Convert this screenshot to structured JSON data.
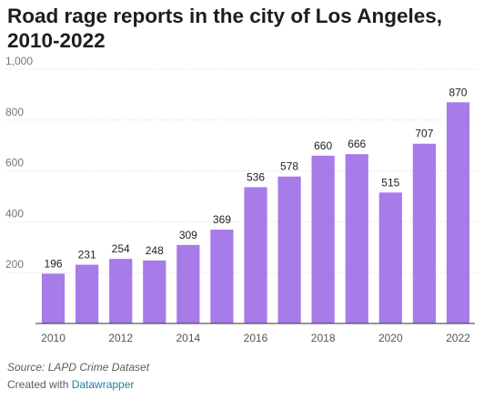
{
  "title": "Road rage reports in the city of Los Angeles, 2010-2022",
  "source": "Source: LAPD Crime Dataset",
  "credit": {
    "prefix": "Created with ",
    "link": "Datawrapper"
  },
  "chart_data": {
    "type": "bar",
    "categories": [
      "2010",
      "2011",
      "2012",
      "2013",
      "2014",
      "2015",
      "2016",
      "2017",
      "2018",
      "2019",
      "2020",
      "2021",
      "2022"
    ],
    "values": [
      196,
      231,
      254,
      248,
      309,
      369,
      536,
      578,
      660,
      666,
      515,
      707,
      870
    ],
    "ylim": [
      0,
      1000
    ],
    "yticks": [
      200,
      400,
      600,
      800,
      1000
    ],
    "ytick_labels": [
      "200",
      "400",
      "600",
      "800",
      "1,000"
    ],
    "xtick_labels": [
      "2010",
      "2012",
      "2014",
      "2016",
      "2018",
      "2020",
      "2022"
    ],
    "grid": true,
    "bar_color": "#a77be8",
    "grid_color": "#e0e0e0",
    "axis_color": "#333333"
  }
}
